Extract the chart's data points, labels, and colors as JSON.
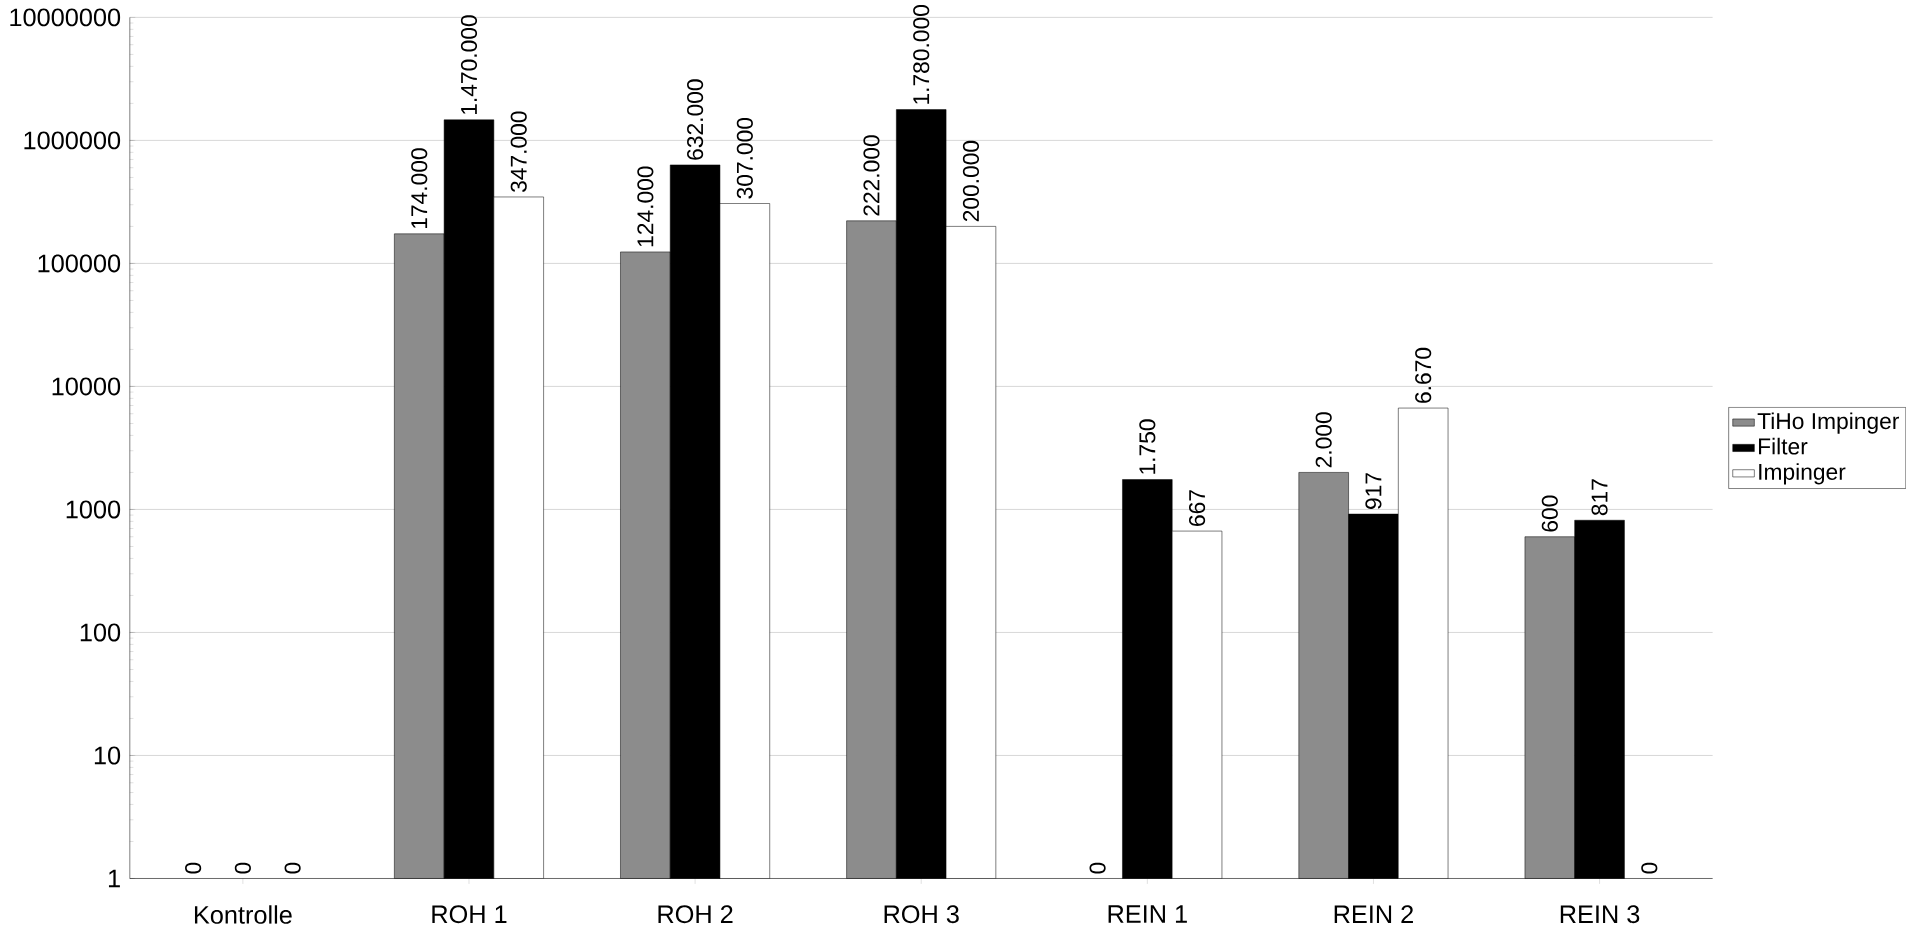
{
  "chart_data": {
    "type": "bar",
    "categories": [
      "Kontrolle",
      "ROH 1",
      "ROH 2",
      "ROH 3",
      "REIN 1",
      "REIN 2",
      "REIN 3"
    ],
    "series": [
      {
        "name": "TiHo Impinger",
        "color": "#8c8c8c",
        "values": [
          null,
          174000,
          124000,
          222000,
          null,
          2000,
          600
        ],
        "value_labels": [
          "0",
          "174.000",
          "124.000",
          "222.000",
          "0",
          "2.000",
          "600"
        ]
      },
      {
        "name": "Filter",
        "color": "#000000",
        "values": [
          null,
          1470000,
          632000,
          1780000,
          1750,
          917,
          817
        ],
        "value_labels": [
          "0",
          "1.470.000",
          "632.000",
          "1.780.000",
          "1.750",
          "917",
          "817"
        ]
      },
      {
        "name": "Impinger",
        "color": "#ffffff",
        "values": [
          null,
          347000,
          307000,
          200000,
          667,
          6670,
          null
        ],
        "value_labels": [
          "0",
          "347.000",
          "307.000",
          "200.000",
          "667",
          "6.670",
          "0"
        ]
      }
    ],
    "log": "y",
    "ylim": [
      1,
      10000000
    ],
    "yticks": [
      1,
      10,
      100,
      1000,
      10000,
      100000,
      1000000,
      10000000
    ],
    "grid": "y",
    "legend": "right"
  }
}
